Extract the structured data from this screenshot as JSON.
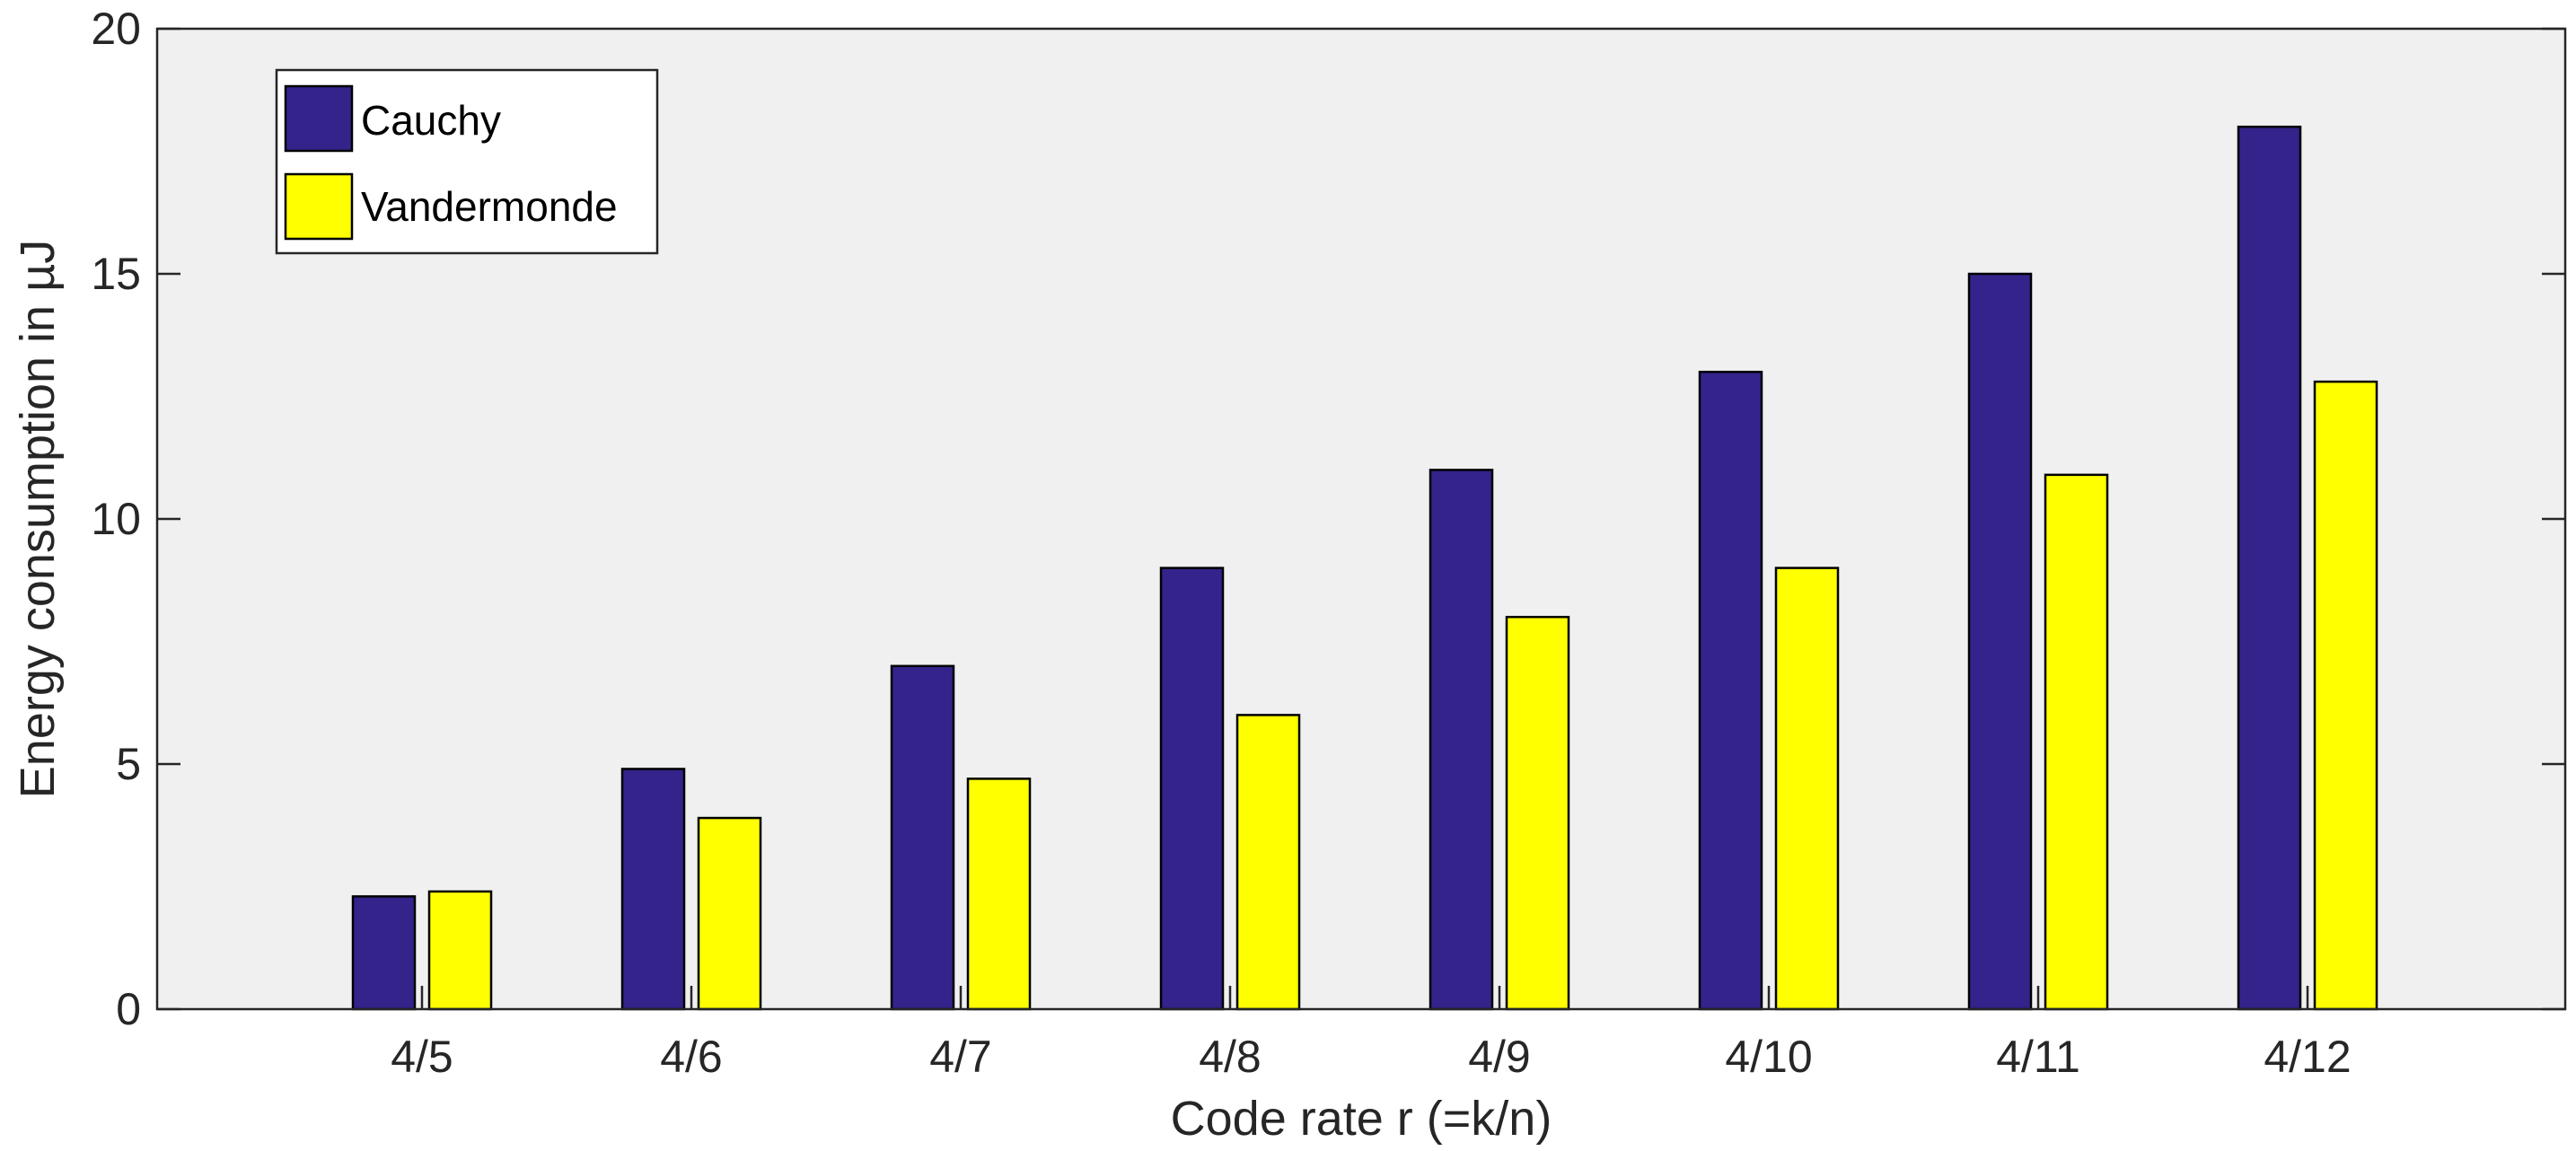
{
  "chart_data": {
    "type": "bar",
    "title": "",
    "xlabel": "Code rate r (=k/n)",
    "ylabel": "Energy consumption in µJ",
    "categories": [
      "4/5",
      "4/6",
      "4/7",
      "4/8",
      "4/9",
      "4/10",
      "4/11",
      "4/12"
    ],
    "series": [
      {
        "name": "Cauchy",
        "color": "#33238a",
        "values": [
          2.3,
          4.9,
          7.0,
          9.0,
          11.0,
          13.0,
          15.0,
          18.0
        ]
      },
      {
        "name": "Vandermonde",
        "color": "#ffff00",
        "values": [
          2.4,
          3.9,
          4.7,
          6.0,
          8.0,
          9.0,
          10.9,
          12.8
        ]
      }
    ],
    "ylim": [
      0,
      20
    ],
    "yticks": [
      0,
      5,
      10,
      15,
      20
    ],
    "grid": false,
    "legend_position": "top-left",
    "plot_background": "#f0f0f0"
  }
}
